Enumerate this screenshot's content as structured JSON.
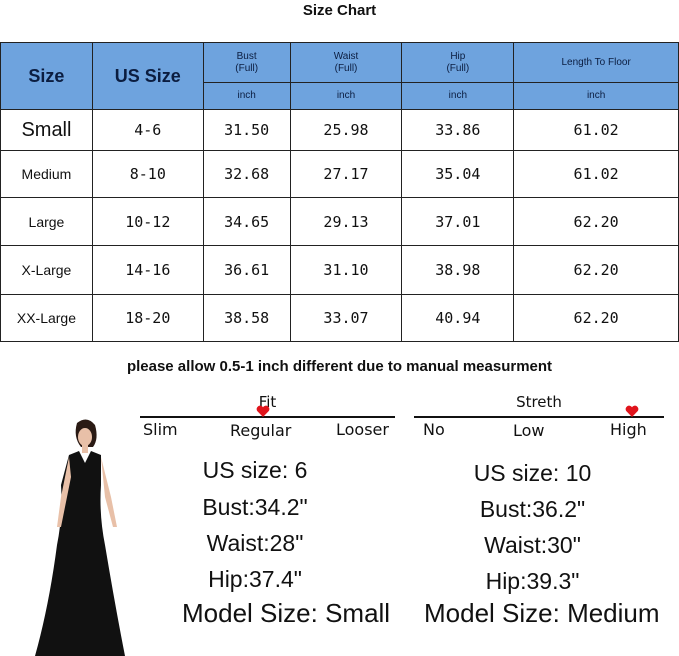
{
  "title": "Size Chart",
  "table": {
    "headers": {
      "size": "Size",
      "us_size": "US Size",
      "bust": "Bust",
      "waist": "Waist",
      "hip": "Hip",
      "full": "(Full)",
      "length": "Length To Floor",
      "unit": "inch"
    },
    "rows": [
      {
        "size": "Small",
        "us": "4-6",
        "bust": "31.50",
        "waist": "25.98",
        "hip": "33.86",
        "length": "61.02"
      },
      {
        "size": "Medium",
        "us": "8-10",
        "bust": "32.68",
        "waist": "27.17",
        "hip": "35.04",
        "length": "61.02"
      },
      {
        "size": "Large",
        "us": "10-12",
        "bust": "34.65",
        "waist": "29.13",
        "hip": "37.01",
        "length": "62.20"
      },
      {
        "size": "X-Large",
        "us": "14-16",
        "bust": "36.61",
        "waist": "31.10",
        "hip": "38.98",
        "length": "62.20"
      },
      {
        "size": "XX-Large",
        "us": "18-20",
        "bust": "38.58",
        "waist": "33.07",
        "hip": "40.94",
        "length": "62.20"
      }
    ]
  },
  "note": "please allow 0.5-1 inch different due to manual  measurment",
  "fit": {
    "title": "Fit",
    "labels": [
      "Slim",
      "Regular",
      "Looser"
    ],
    "selected": "Regular"
  },
  "stretch": {
    "title": "Streth",
    "labels": [
      "No",
      "Low",
      "High"
    ],
    "selected": "High"
  },
  "model1": {
    "us": "US size: 6",
    "bust": "Bust:34.2\"",
    "waist": "Waist:28\"",
    "hip": "Hip:37.4\"",
    "size": "Model Size: Small"
  },
  "model2": {
    "us": "US size: 10",
    "bust": "Bust:36.2\"",
    "waist": "Waist:30\"",
    "hip": "Hip:39.3\"",
    "size": "Model Size: Medium"
  },
  "colors": {
    "header": "#6ea3de",
    "heart": "#e0141c"
  }
}
